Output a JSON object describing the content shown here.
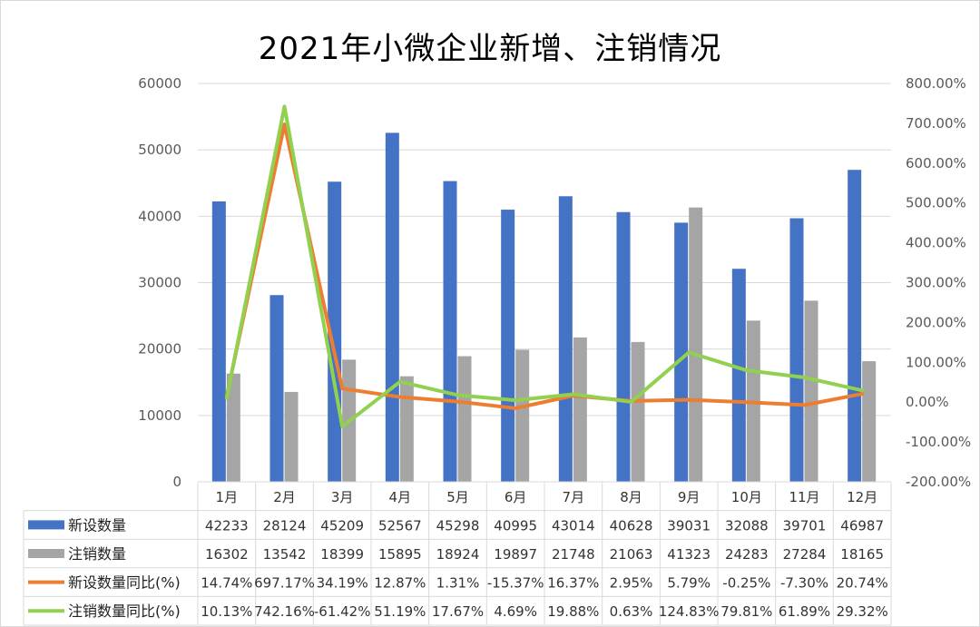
{
  "chart_data": {
    "type": "bar",
    "title": "2021年小微企业新增、注销情况",
    "categories": [
      "1月",
      "2月",
      "3月",
      "4月",
      "5月",
      "6月",
      "7月",
      "8月",
      "9月",
      "10月",
      "11月",
      "12月"
    ],
    "y_left": {
      "ylim": [
        0,
        60000
      ],
      "ticks": [
        "0",
        "10000",
        "20000",
        "30000",
        "40000",
        "50000",
        "60000"
      ]
    },
    "y_right": {
      "ylim": [
        -2.0,
        8.0
      ],
      "ticks": [
        "-200.00%",
        "-100.00%",
        "0.00%",
        "100.00%",
        "200.00%",
        "300.00%",
        "400.00%",
        "500.00%",
        "600.00%",
        "700.00%",
        "800.00%"
      ]
    },
    "grid": true,
    "legend_placement": "data-table",
    "series": [
      {
        "name": "新设数量",
        "kind": "bar",
        "axis": "left",
        "color": "#4472c4",
        "values": [
          42233,
          28124,
          45209,
          52567,
          45298,
          40995,
          43014,
          40628,
          39031,
          32088,
          39701,
          46987
        ],
        "labels": [
          "42233",
          "28124",
          "45209",
          "52567",
          "45298",
          "40995",
          "43014",
          "40628",
          "39031",
          "32088",
          "39701",
          "46987"
        ]
      },
      {
        "name": "注销数量",
        "kind": "bar",
        "axis": "left",
        "color": "#a5a5a5",
        "values": [
          16302,
          13542,
          18399,
          15895,
          18924,
          19897,
          21748,
          21063,
          41323,
          24283,
          27284,
          18165
        ],
        "labels": [
          "16302",
          "13542",
          "18399",
          "15895",
          "18924",
          "19897",
          "21748",
          "21063",
          "41323",
          "24283",
          "27284",
          "18165"
        ]
      },
      {
        "name": "新设数量同比(%)",
        "kind": "line",
        "axis": "right",
        "color": "#ed7d31",
        "values": [
          0.1474,
          6.9717,
          0.3419,
          0.1287,
          0.0131,
          -0.1537,
          0.1637,
          0.0295,
          0.0579,
          -0.0025,
          -0.073,
          0.2074
        ],
        "labels": [
          "14.74%",
          "697.17%",
          "34.19%",
          "12.87%",
          "1.31%",
          "-15.37%",
          "16.37%",
          "2.95%",
          "5.79%",
          "-0.25%",
          "-7.30%",
          "20.74%"
        ]
      },
      {
        "name": "注销数量同比(%)",
        "kind": "line",
        "axis": "right",
        "color": "#92d050",
        "values": [
          0.1013,
          7.4216,
          -0.6142,
          0.5119,
          0.1767,
          0.0469,
          0.1988,
          0.0063,
          1.2483,
          0.7981,
          0.6189,
          0.2932
        ],
        "labels": [
          "10.13%",
          "742.16%",
          "-61.42%",
          "51.19%",
          "17.67%",
          "4.69%",
          "19.88%",
          "0.63%",
          "124.83%",
          "79.81%",
          "61.89%",
          "29.32%"
        ]
      }
    ]
  }
}
